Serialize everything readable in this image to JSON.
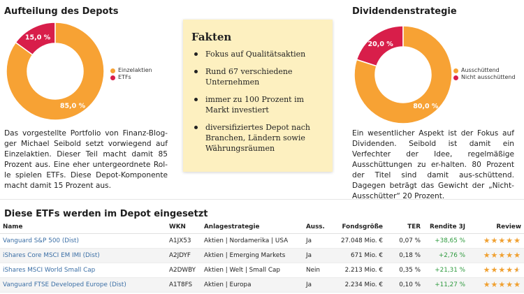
{
  "left": {
    "title": "Aufteilung des Depots",
    "slice_labels": [
      "15,0 %",
      "85,0 %"
    ],
    "legend": [
      {
        "label": "Einzelaktien",
        "color": "#f7a234"
      },
      {
        "label": "ETFs",
        "color": "#d81e4a"
      }
    ],
    "paragraph": "Das vorgestellte Portfolio von Finanz-Blog-ger Michael Seibold setzt vorwiegend auf Einzelaktien. Dieser Teil macht damit 85 Prozent aus. Eine eher untergeordnete Rol-le spielen ETFs. Diese Depot-Komponente macht damit 15 Prozent aus."
  },
  "facts": {
    "title": "Fakten",
    "items": [
      "Fokus auf Qualitätsaktien",
      "Rund 67 verschiedene Unternehmen",
      "immer zu 100 Prozent im Markt investiert",
      "diversifiziertes Depot nach Branchen, Ländern sowie Währungsräumen"
    ]
  },
  "right": {
    "title": "Dividendenstrategie",
    "slice_labels": [
      "20,0 %",
      "80,0 %"
    ],
    "legend": [
      {
        "label": "Ausschüttend",
        "color": "#f7a234"
      },
      {
        "label": "Nicht ausschüttend",
        "color": "#d81e4a"
      }
    ],
    "paragraph": "Ein wesentlicher Aspekt ist der Fokus auf Dividenden. Seibold ist damit ein Verfechter der Idee, regelmäßige Ausschüttungen zu er-halten. 80 Prozent der Titel sind damit aus-schüttend. Dagegen beträgt das Gewicht der „Nicht-Ausschütter“ 20 Prozent."
  },
  "chart_data": [
    {
      "type": "pie",
      "title": "Aufteilung des Depots",
      "categories": [
        "Einzelaktien",
        "ETFs"
      ],
      "values": [
        85.0,
        15.0
      ],
      "colors": [
        "#f7a234",
        "#d81e4a"
      ],
      "legend": "right"
    },
    {
      "type": "pie",
      "title": "Dividendenstrategie",
      "categories": [
        "Ausschüttend",
        "Nicht ausschüttend"
      ],
      "values": [
        80.0,
        20.0
      ],
      "colors": [
        "#f7a234",
        "#d81e4a"
      ],
      "legend": "right"
    }
  ],
  "etf_table": {
    "title": "Diese ETFs werden im Depot eingesetzt",
    "headers": [
      "Name",
      "WKN",
      "Anlagestrategie",
      "Auss.",
      "Fondsgröße",
      "TER",
      "Rendite 3J",
      "Review"
    ],
    "rows": [
      {
        "name": "Vanguard S&P 500 (Dist)",
        "wkn": "A1JX53",
        "strategy": "Aktien | Nordamerika | USA",
        "auss": "Ja",
        "size": "27.048 Mio. €",
        "ter": "0,07 %",
        "ret": "+38,65 %",
        "rating": 5
      },
      {
        "name": "iShares Core MSCI EM IMI (Dist)",
        "wkn": "A2JDYF",
        "strategy": "Aktien | Emerging Markets",
        "auss": "Ja",
        "size": "671 Mio. €",
        "ter": "0,18 %",
        "ret": "+2,76 %",
        "rating": 5
      },
      {
        "name": "iShares MSCI World Small Cap",
        "wkn": "A2DWBY",
        "strategy": "Aktien | Welt | Small Cap",
        "auss": "Nein",
        "size": "2.213 Mio. €",
        "ter": "0,35 %",
        "ret": "+21,31 %",
        "rating": 4.5
      },
      {
        "name": "Vanguard FTSE Developed Europe (Dist)",
        "wkn": "A1T8FS",
        "strategy": "Aktien | Europa",
        "auss": "Ja",
        "size": "2.234 Mio. €",
        "ter": "0,10 %",
        "ret": "+11,27 %",
        "rating": 5
      }
    ]
  }
}
